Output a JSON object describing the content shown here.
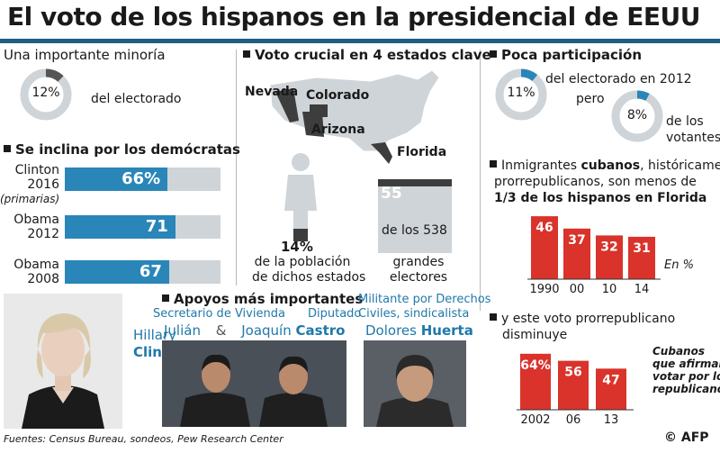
{
  "title": "El voto de los hispanos en la presidencial de EEUU",
  "minority": {
    "heading": "Una importante minoría",
    "pct": "12%",
    "label": "del electorado",
    "fraction": 0.12
  },
  "dems": {
    "heading": "Se inclina por los demócratas",
    "rows": [
      {
        "name": "Clinton",
        "year": "2016",
        "note": "(primarias)",
        "value_label": "66%",
        "value": 66
      },
      {
        "name": "Obama",
        "year": "2012",
        "note": "",
        "value_label": "71",
        "value": 71
      },
      {
        "name": "Obama",
        "year": "2008",
        "note": "",
        "value_label": "67",
        "value": 67
      }
    ]
  },
  "hillary": {
    "first": "Hillary",
    "last": "Clinton"
  },
  "crucial": {
    "heading": "Voto crucial en 4 estados clave",
    "states": [
      "Nevada",
      "Colorado",
      "Arizona",
      "Florida"
    ],
    "pop_pct": "14%",
    "pop_label1": "de la población",
    "pop_label2": "de dichos estados",
    "electors_num": "55",
    "electors_of": "de los 538",
    "electors_label1": "grandes",
    "electors_label2": "electores",
    "pop_fraction": 0.14,
    "electors_fraction": 0.102
  },
  "supports": {
    "heading": "Apoyos más importantes",
    "castro_role1": "Secretario de Vivienda",
    "castro_role2": "Diputado",
    "castro_first1": "Julián",
    "amp": "&",
    "castro_first2": "Joaquín",
    "castro_last": "Castro",
    "huerta_role1": "Militante por Derechos",
    "huerta_role2": "Civiles, sindicalista",
    "huerta_first": "Dolores",
    "huerta_last": "Huerta"
  },
  "participation": {
    "heading": "Poca participación",
    "pct1": "11%",
    "label1": "del electorado en 2012",
    "pero": "pero",
    "pct2": "8%",
    "label2a": "de los",
    "label2b": "votantes",
    "fraction1": 0.11,
    "fraction2": 0.08
  },
  "cubans": {
    "line1_a": "Inmigrantes ",
    "line1_b": "cubanos",
    "line1_c": ", históricamente",
    "line2": "prorrepublicanos, son menos de",
    "line3": "1/3 de los hispanos en Florida",
    "unit": "En %",
    "chart_data": {
      "type": "bar",
      "categories": [
        "1990",
        "00",
        "10",
        "14"
      ],
      "values": [
        46,
        37,
        32,
        31
      ]
    }
  },
  "decline": {
    "line1": "y este voto prorrepublicano",
    "line2": "disminuye",
    "note1": "Cubanos",
    "note2": "que afirman",
    "note3": "votar por los",
    "note4": "republicanos",
    "chart_data": {
      "type": "bar",
      "categories": [
        "2002",
        "06",
        "13"
      ],
      "values": [
        64,
        56,
        47
      ],
      "value_labels": [
        "64%",
        "56",
        "47"
      ]
    }
  },
  "footer": {
    "sources": "Fuentes: Census Bureau, sondeos, Pew Research Center",
    "credit": "© AFP"
  },
  "colors": {
    "blue": "#2a86b8",
    "red": "#d9332b",
    "grey": "#cfd4d8",
    "dark": "#1a1a1a"
  }
}
